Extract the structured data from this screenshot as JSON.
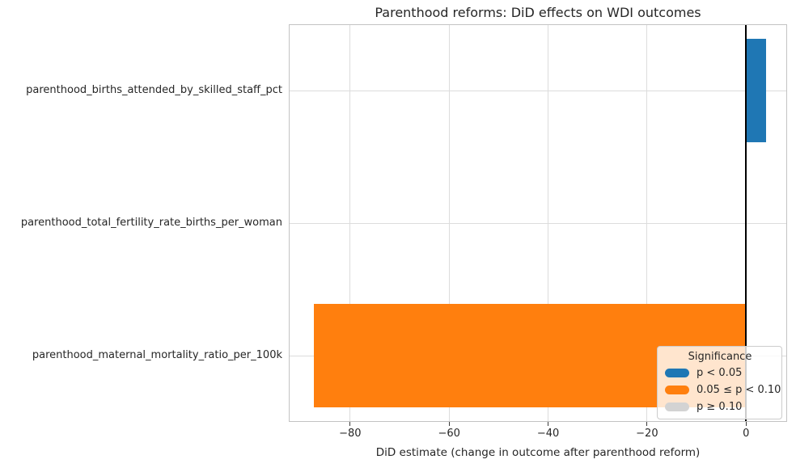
{
  "chart_data": {
    "type": "bar",
    "orientation": "horizontal",
    "title": "Parenthood reforms: DiD effects on WDI outcomes",
    "xlabel": "DiD estimate (change in outcome after parenthood reform)",
    "ylabel": "",
    "categories": [
      "parenthood_births_attended_by_skilled_staff_pct",
      "parenthood_total_fertility_rate_births_per_woman",
      "parenthood_maternal_mortality_ratio_per_100k"
    ],
    "bars": [
      {
        "category": "parenthood_births_attended_by_skilled_staff_pct",
        "value": 4.1,
        "color": "#1f77b4",
        "significance": "p < 0.05"
      },
      {
        "category": "parenthood_total_fertility_rate_births_per_woman",
        "value": 0.0,
        "color": null,
        "significance": null
      },
      {
        "category": "parenthood_maternal_mortality_ratio_per_100k",
        "value": -87.4,
        "color": "#ff7f0e",
        "significance": "0.05 ≤ p < 0.10"
      }
    ],
    "x_ticks": [
      {
        "value": -80,
        "label": "−80"
      },
      {
        "value": -60,
        "label": "−60"
      },
      {
        "value": -40,
        "label": "−40"
      },
      {
        "value": -20,
        "label": "−20"
      },
      {
        "value": 0,
        "label": "0"
      }
    ],
    "xlim": [
      -92.4,
      8.3
    ],
    "grid": true,
    "zero_line": true,
    "zero_line_color": "#000000",
    "legend": {
      "title": "Significance",
      "position": "lower right",
      "entries": [
        {
          "label": "p < 0.05",
          "color": "#1f77b4"
        },
        {
          "label": "0.05 ≤ p < 0.10",
          "color": "#ff7f0e"
        },
        {
          "label": "p ≥ 0.10",
          "color": "#d3d3d3"
        }
      ]
    },
    "colors": {
      "significant": "#1f77b4",
      "marginal": "#ff7f0e",
      "not_significant": "#d3d3d3"
    }
  }
}
